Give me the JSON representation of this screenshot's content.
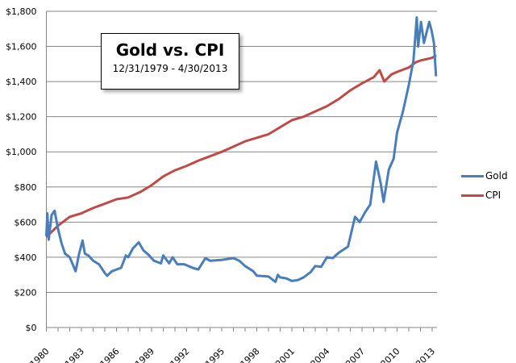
{
  "chart_data": {
    "type": "line",
    "title": "Gold vs. CPI",
    "subtitle": "12/31/1979  - 4/30/2013",
    "xlabel": "",
    "ylabel": "",
    "xlim": [
      1980,
      2013.33
    ],
    "ylim": [
      0,
      1800
    ],
    "x_ticks": [
      "1980",
      "1983",
      "1986",
      "1989",
      "1992",
      "1995",
      "1998",
      "2001",
      "2004",
      "2007",
      "2010",
      "2013"
    ],
    "y_ticks": [
      "$0",
      "$200",
      "$400",
      "$600",
      "$800",
      "$1,000",
      "$1,200",
      "$1,400",
      "$1,600",
      "$1,800"
    ],
    "grid": true,
    "legend_position": "right",
    "series": [
      {
        "name": "Gold",
        "color": "#4A7EBB",
        "points": [
          [
            1980.0,
            520
          ],
          [
            1980.08,
            650
          ],
          [
            1980.2,
            500
          ],
          [
            1980.45,
            640
          ],
          [
            1980.7,
            665
          ],
          [
            1981.0,
            560
          ],
          [
            1981.3,
            480
          ],
          [
            1981.6,
            420
          ],
          [
            1982.0,
            400
          ],
          [
            1982.5,
            320
          ],
          [
            1982.8,
            420
          ],
          [
            1983.1,
            495
          ],
          [
            1983.3,
            420
          ],
          [
            1983.6,
            410
          ],
          [
            1984.0,
            380
          ],
          [
            1984.5,
            360
          ],
          [
            1985.0,
            310
          ],
          [
            1985.2,
            295
          ],
          [
            1985.6,
            320
          ],
          [
            1986.0,
            330
          ],
          [
            1986.4,
            340
          ],
          [
            1986.8,
            410
          ],
          [
            1987.0,
            400
          ],
          [
            1987.4,
            450
          ],
          [
            1987.9,
            485
          ],
          [
            1988.3,
            440
          ],
          [
            1988.8,
            410
          ],
          [
            1989.2,
            380
          ],
          [
            1989.8,
            365
          ],
          [
            1990.0,
            410
          ],
          [
            1990.5,
            365
          ],
          [
            1990.8,
            400
          ],
          [
            1991.2,
            360
          ],
          [
            1991.8,
            360
          ],
          [
            1992.5,
            340
          ],
          [
            1993.0,
            330
          ],
          [
            1993.6,
            395
          ],
          [
            1994.0,
            380
          ],
          [
            1995.0,
            385
          ],
          [
            1996.0,
            395
          ],
          [
            1996.5,
            380
          ],
          [
            1997.0,
            350
          ],
          [
            1997.7,
            320
          ],
          [
            1998.0,
            295
          ],
          [
            1999.0,
            290
          ],
          [
            1999.6,
            260
          ],
          [
            1999.8,
            300
          ],
          [
            2000.0,
            285
          ],
          [
            2000.5,
            280
          ],
          [
            2001.0,
            265
          ],
          [
            2001.5,
            270
          ],
          [
            2002.0,
            285
          ],
          [
            2002.6,
            315
          ],
          [
            2003.0,
            350
          ],
          [
            2003.5,
            345
          ],
          [
            2004.0,
            400
          ],
          [
            2004.5,
            395
          ],
          [
            2005.0,
            425
          ],
          [
            2005.8,
            460
          ],
          [
            2006.4,
            630
          ],
          [
            2006.8,
            600
          ],
          [
            2007.3,
            660
          ],
          [
            2007.7,
            700
          ],
          [
            2008.2,
            945
          ],
          [
            2008.6,
            820
          ],
          [
            2008.85,
            715
          ],
          [
            2009.3,
            900
          ],
          [
            2009.7,
            960
          ],
          [
            2010.0,
            1110
          ],
          [
            2010.5,
            1230
          ],
          [
            2011.0,
            1380
          ],
          [
            2011.4,
            1520
          ],
          [
            2011.68,
            1765
          ],
          [
            2011.8,
            1600
          ],
          [
            2012.05,
            1740
          ],
          [
            2012.3,
            1620
          ],
          [
            2012.75,
            1740
          ],
          [
            2012.95,
            1690
          ],
          [
            2013.15,
            1620
          ],
          [
            2013.33,
            1430
          ]
        ]
      },
      {
        "name": "CPI",
        "color": "#BE4B48",
        "points": [
          [
            1980.0,
            515
          ],
          [
            1981.0,
            580
          ],
          [
            1982.0,
            630
          ],
          [
            1983.0,
            650
          ],
          [
            1984.0,
            680
          ],
          [
            1985.0,
            705
          ],
          [
            1986.0,
            730
          ],
          [
            1987.0,
            740
          ],
          [
            1988.0,
            770
          ],
          [
            1989.0,
            810
          ],
          [
            1990.0,
            860
          ],
          [
            1991.0,
            895
          ],
          [
            1992.0,
            920
          ],
          [
            1993.0,
            950
          ],
          [
            1994.0,
            975
          ],
          [
            1995.0,
            1000
          ],
          [
            1996.0,
            1030
          ],
          [
            1997.0,
            1060
          ],
          [
            1998.0,
            1080
          ],
          [
            1999.0,
            1100
          ],
          [
            2000.0,
            1140
          ],
          [
            2001.0,
            1180
          ],
          [
            2002.0,
            1200
          ],
          [
            2003.0,
            1230
          ],
          [
            2004.0,
            1260
          ],
          [
            2005.0,
            1300
          ],
          [
            2006.0,
            1350
          ],
          [
            2007.0,
            1390
          ],
          [
            2008.0,
            1425
          ],
          [
            2008.5,
            1465
          ],
          [
            2008.9,
            1400
          ],
          [
            2009.5,
            1440
          ],
          [
            2010.0,
            1455
          ],
          [
            2011.0,
            1480
          ],
          [
            2011.6,
            1510
          ],
          [
            2012.0,
            1520
          ],
          [
            2013.0,
            1535
          ],
          [
            2013.33,
            1550
          ]
        ]
      }
    ]
  }
}
